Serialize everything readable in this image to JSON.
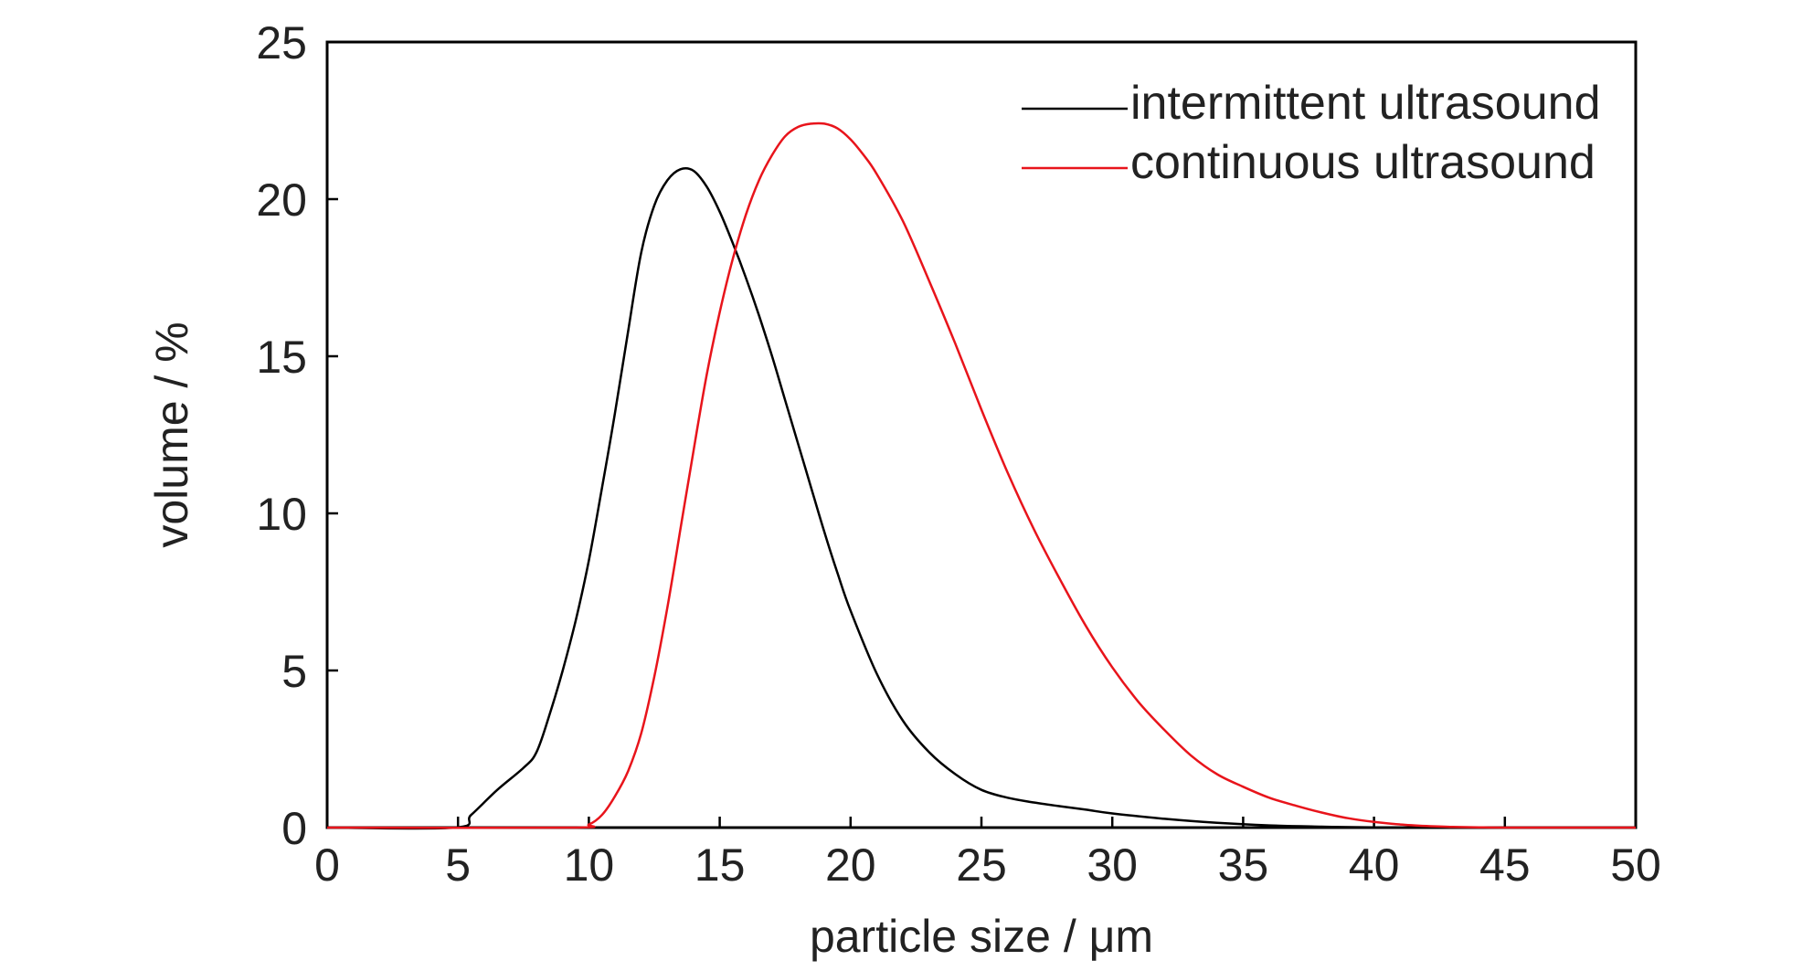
{
  "chart_data": {
    "type": "line",
    "title": "",
    "xlabel": "particle size / μm",
    "ylabel": "volume / %",
    "xlim": [
      0,
      50
    ],
    "ylim": [
      0,
      25
    ],
    "xticks": [
      0,
      5,
      10,
      15,
      20,
      25,
      30,
      35,
      40,
      45,
      50
    ],
    "yticks": [
      0,
      5,
      10,
      15,
      20,
      25
    ],
    "grid": false,
    "legend_position": "top-right",
    "series": [
      {
        "name": "intermittent ultrasound",
        "color": "#000000",
        "x": [
          0,
          4.9,
          5.5,
          6.5,
          7.5,
          8.0,
          8.5,
          9.0,
          9.5,
          10.0,
          10.5,
          11.0,
          11.5,
          12.0,
          12.5,
          13.0,
          13.5,
          14.0,
          14.5,
          15.0,
          15.5,
          16.0,
          16.5,
          17.0,
          17.5,
          18.0,
          18.5,
          19.0,
          19.5,
          20.0,
          21.0,
          22.0,
          23.0,
          24.0,
          25.0,
          26.0,
          27.0,
          28.0,
          29.0,
          30.0,
          32.0,
          34.0,
          36.0,
          38.0,
          40.0,
          45.0,
          50.0
        ],
        "y": [
          0,
          0,
          0.4,
          1.2,
          1.9,
          2.4,
          3.6,
          5.0,
          6.6,
          8.5,
          10.8,
          13.2,
          15.8,
          18.3,
          19.8,
          20.6,
          20.95,
          20.9,
          20.4,
          19.6,
          18.6,
          17.5,
          16.3,
          15.0,
          13.6,
          12.2,
          10.8,
          9.4,
          8.1,
          6.9,
          4.9,
          3.4,
          2.4,
          1.7,
          1.2,
          0.95,
          0.8,
          0.68,
          0.57,
          0.45,
          0.28,
          0.15,
          0.07,
          0.03,
          0.01,
          0,
          0
        ]
      },
      {
        "name": "continuous ultrasound",
        "color": "#e8141b",
        "x": [
          0,
          9.3,
          10.0,
          10.5,
          11.0,
          11.5,
          12.0,
          12.5,
          13.0,
          13.5,
          14.0,
          14.5,
          15.0,
          15.5,
          16.0,
          16.5,
          17.0,
          17.5,
          18.0,
          18.5,
          19.0,
          19.5,
          20.0,
          20.5,
          21.0,
          22.0,
          23.0,
          24.0,
          25.0,
          26.0,
          27.0,
          28.0,
          29.0,
          30.0,
          31.0,
          32.0,
          33.0,
          34.0,
          35.0,
          36.0,
          37.0,
          38.0,
          39.0,
          40.0,
          41.0,
          42.0,
          43.0,
          44.0,
          45.0,
          50.0
        ],
        "y": [
          0,
          0,
          0.1,
          0.4,
          1.0,
          1.8,
          3.0,
          4.8,
          7.0,
          9.5,
          12.0,
          14.4,
          16.4,
          18.1,
          19.5,
          20.6,
          21.4,
          22.0,
          22.3,
          22.4,
          22.4,
          22.25,
          21.9,
          21.4,
          20.8,
          19.3,
          17.4,
          15.4,
          13.3,
          11.3,
          9.5,
          7.9,
          6.4,
          5.1,
          4.0,
          3.1,
          2.3,
          1.7,
          1.3,
          0.95,
          0.7,
          0.48,
          0.3,
          0.18,
          0.1,
          0.05,
          0.02,
          0.01,
          0,
          0
        ]
      }
    ]
  }
}
